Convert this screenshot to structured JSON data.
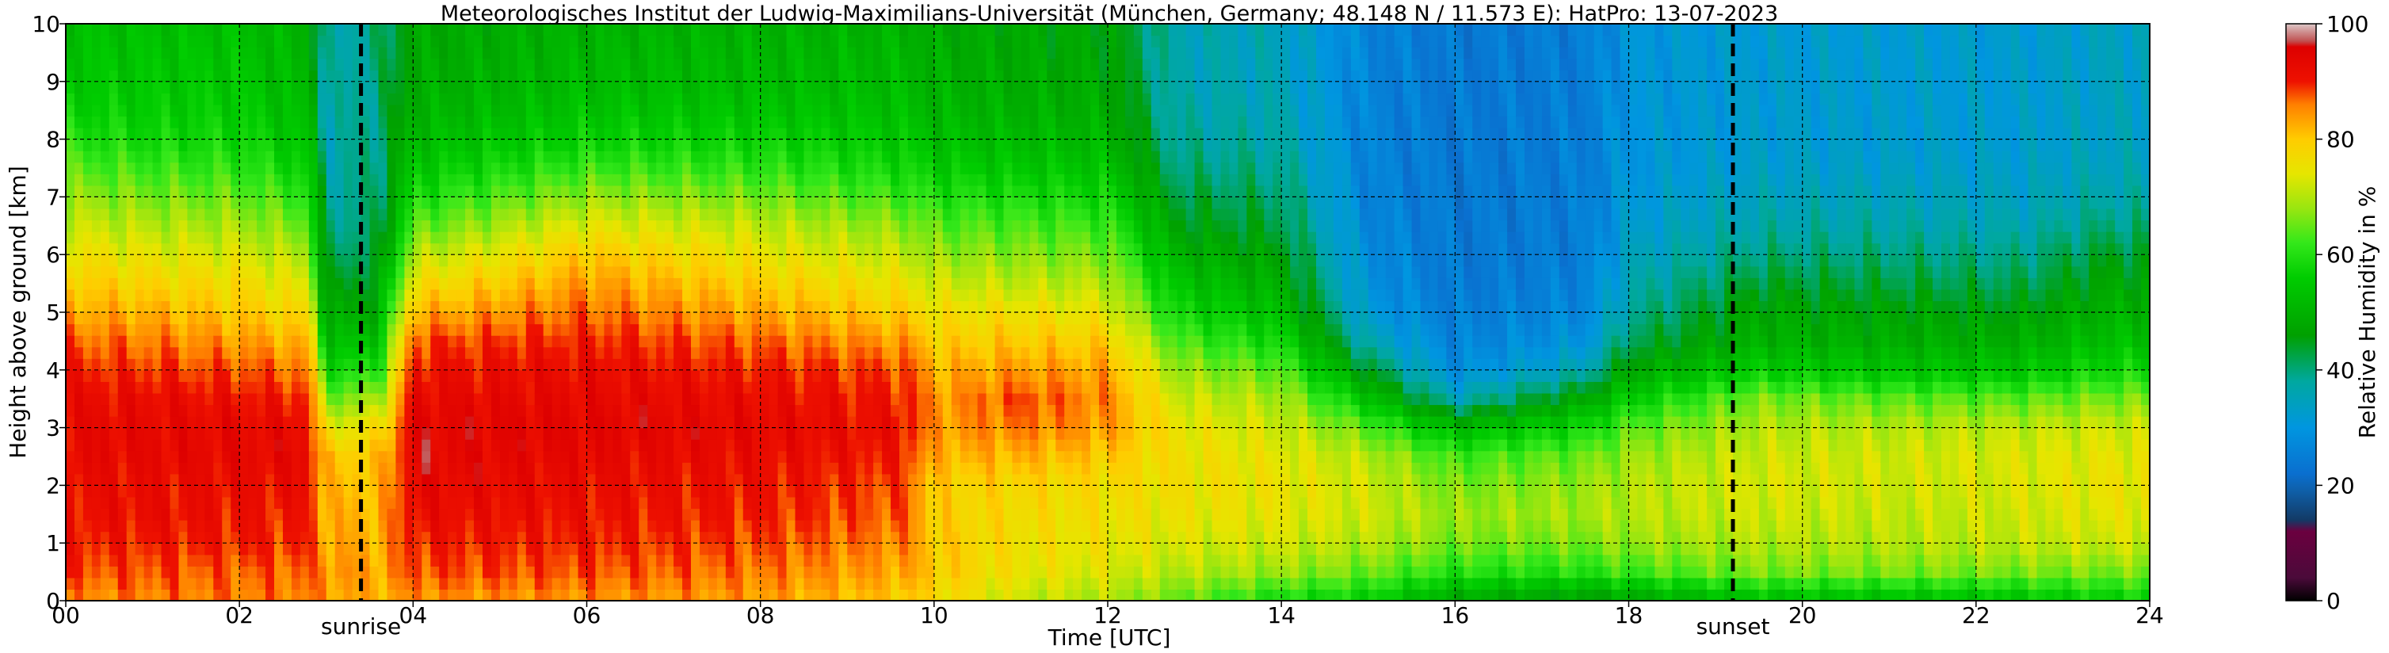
{
  "chart_data": {
    "type": "heatmap",
    "title": "Meteorologisches Institut der Ludwig-Maximilians-Universität (München, Germany; 48.148 N / 11.573 E):    HatPro: 13-07-2023",
    "xlabel": "Time [UTC]",
    "ylabel": "Height above ground [km]",
    "xlim": [
      0,
      24
    ],
    "ylim": [
      0,
      10
    ],
    "x_ticks": [
      "00",
      "02",
      "04",
      "06",
      "08",
      "10",
      "12",
      "14",
      "16",
      "18",
      "20",
      "22",
      "24"
    ],
    "y_ticks": [
      "0",
      "1",
      "2",
      "3",
      "4",
      "5",
      "6",
      "7",
      "8",
      "9",
      "10"
    ],
    "grid": true,
    "colorbar": {
      "label": "Relative Humidity in %",
      "range": [
        0,
        100
      ],
      "ticks": [
        "0",
        "20",
        "40",
        "60",
        "80",
        "100"
      ]
    },
    "annotations": [
      {
        "text": "sunrise",
        "x": 3.4
      },
      {
        "text": "sunset",
        "x": 19.2
      }
    ],
    "profile_heights_km": [
      0.1,
      0.5,
      1.0,
      1.5,
      2.0,
      2.5,
      3.0,
      3.5,
      4.0,
      4.5,
      5.0,
      5.5,
      6.0,
      6.5,
      7.0,
      7.5,
      8.0,
      8.5,
      9.0,
      9.5,
      10.0
    ],
    "profiles": [
      {
        "t": 0.0,
        "rh": [
          85,
          88,
          90,
          91,
          92,
          93,
          93,
          92,
          90,
          87,
          83,
          80,
          76,
          72,
          68,
          64,
          60,
          57,
          55,
          54,
          53
        ]
      },
      {
        "t": 1.0,
        "rh": [
          86,
          88,
          90,
          92,
          92,
          93,
          93,
          92,
          89,
          86,
          82,
          78,
          74,
          70,
          66,
          62,
          58,
          56,
          55,
          54,
          53
        ]
      },
      {
        "t": 2.0,
        "rh": [
          86,
          87,
          90,
          91,
          92,
          93,
          93,
          91,
          88,
          84,
          80,
          77,
          73,
          69,
          65,
          61,
          58,
          56,
          55,
          54,
          53
        ]
      },
      {
        "t": 2.8,
        "rh": [
          86,
          87,
          89,
          90,
          92,
          93,
          92,
          90,
          86,
          82,
          77,
          73,
          69,
          65,
          61,
          57,
          54,
          52,
          51,
          50,
          50
        ]
      },
      {
        "t": 3.0,
        "rh": [
          84,
          85,
          83,
          82,
          81,
          80,
          74,
          66,
          58,
          52,
          48,
          44,
          41,
          39,
          38,
          37,
          36,
          36,
          36,
          36,
          36
        ]
      },
      {
        "t": 3.6,
        "rh": [
          82,
          83,
          82,
          82,
          81,
          80,
          76,
          68,
          60,
          54,
          49,
          46,
          43,
          41,
          40,
          40,
          40,
          40,
          40,
          40,
          40
        ]
      },
      {
        "t": 4.0,
        "rh": [
          85,
          88,
          90,
          92,
          93,
          94,
          94,
          93,
          91,
          88,
          82,
          76,
          70,
          64,
          59,
          55,
          52,
          50,
          49,
          48,
          48
        ]
      },
      {
        "t": 6.0,
        "rh": [
          85,
          88,
          90,
          91,
          92,
          93,
          94,
          93,
          92,
          90,
          87,
          84,
          80,
          74,
          68,
          62,
          57,
          54,
          52,
          51,
          50
        ]
      },
      {
        "t": 8.0,
        "rh": [
          84,
          86,
          88,
          90,
          91,
          92,
          93,
          92,
          90,
          87,
          83,
          79,
          75,
          71,
          66,
          61,
          57,
          54,
          52,
          51,
          50
        ]
      },
      {
        "t": 9.7,
        "rh": [
          80,
          83,
          85,
          87,
          88,
          90,
          91,
          90,
          88,
          84,
          79,
          75,
          71,
          67,
          62,
          58,
          55,
          53,
          52,
          51,
          50
        ]
      },
      {
        "t": 10.0,
        "rh": [
          78,
          80,
          80,
          79,
          79,
          82,
          84,
          84,
          82,
          79,
          76,
          72,
          68,
          64,
          60,
          56,
          53,
          51,
          50,
          49,
          48
        ]
      },
      {
        "t": 11.0,
        "rh": [
          72,
          75,
          76,
          77,
          78,
          82,
          86,
          88,
          84,
          80,
          76,
          71,
          67,
          63,
          59,
          55,
          52,
          50,
          49,
          48,
          48
        ]
      },
      {
        "t": 12.0,
        "rh": [
          70,
          73,
          75,
          76,
          77,
          80,
          84,
          85,
          83,
          79,
          74,
          70,
          66,
          62,
          58,
          54,
          51,
          49,
          48,
          47,
          47
        ]
      },
      {
        "t": 12.8,
        "rh": [
          66,
          70,
          73,
          75,
          76,
          76,
          75,
          72,
          68,
          63,
          58,
          54,
          50,
          46,
          43,
          40,
          38,
          37,
          36,
          36,
          36
        ]
      },
      {
        "t": 14.0,
        "rh": [
          60,
          68,
          72,
          74,
          75,
          74,
          72,
          69,
          64,
          58,
          53,
          49,
          46,
          43,
          41,
          39,
          37,
          36,
          35,
          35,
          35
        ]
      },
      {
        "t": 15.0,
        "rh": [
          58,
          65,
          70,
          72,
          72,
          70,
          64,
          54,
          44,
          36,
          31,
          29,
          28,
          27,
          26,
          26,
          26,
          26,
          26,
          26,
          26
        ]
      },
      {
        "t": 16.0,
        "rh": [
          50,
          60,
          66,
          68,
          66,
          62,
          52,
          36,
          28,
          26,
          25,
          24,
          24,
          24,
          24,
          24,
          24,
          24,
          24,
          24,
          24
        ]
      },
      {
        "t": 17.5,
        "rh": [
          48,
          60,
          66,
          69,
          68,
          65,
          58,
          48,
          36,
          30,
          27,
          26,
          25,
          25,
          25,
          25,
          25,
          25,
          25,
          25,
          25
        ]
      },
      {
        "t": 18.0,
        "rh": [
          50,
          62,
          68,
          70,
          70,
          68,
          64,
          56,
          48,
          42,
          38,
          36,
          34,
          32,
          31,
          30,
          30,
          30,
          30,
          30,
          30
        ]
      },
      {
        "t": 19.5,
        "rh": [
          55,
          66,
          70,
          72,
          73,
          72,
          70,
          66,
          56,
          50,
          48,
          44,
          40,
          37,
          35,
          33,
          32,
          32,
          32,
          32,
          32
        ]
      },
      {
        "t": 21.0,
        "rh": [
          55,
          66,
          70,
          71,
          72,
          72,
          70,
          64,
          54,
          49,
          47,
          43,
          40,
          37,
          35,
          33,
          32,
          32,
          32,
          32,
          32
        ]
      },
      {
        "t": 22.5,
        "rh": [
          56,
          66,
          71,
          72,
          73,
          73,
          71,
          64,
          54,
          49,
          46,
          42,
          39,
          36,
          34,
          33,
          32,
          32,
          32,
          32,
          32
        ]
      },
      {
        "t": 23.5,
        "rh": [
          58,
          66,
          72,
          74,
          75,
          74,
          72,
          66,
          58,
          53,
          50,
          47,
          44,
          40,
          37,
          35,
          34,
          34,
          34,
          34,
          34
        ]
      },
      {
        "t": 24.0,
        "rh": [
          58,
          66,
          72,
          74,
          75,
          74,
          72,
          66,
          58,
          53,
          50,
          47,
          44,
          40,
          37,
          35,
          34,
          34,
          34,
          34,
          34
        ]
      }
    ],
    "colormap": [
      {
        "v": 0,
        "color": "#000000"
      },
      {
        "v": 4,
        "color": "#4b0a3a"
      },
      {
        "v": 12,
        "color": "#6b003f"
      },
      {
        "v": 14,
        "color": "#123a66"
      },
      {
        "v": 19,
        "color": "#0f5fa8"
      },
      {
        "v": 22,
        "color": "#0a6fcf"
      },
      {
        "v": 30,
        "color": "#0096e0"
      },
      {
        "v": 38,
        "color": "#00a8a0"
      },
      {
        "v": 46,
        "color": "#00a000"
      },
      {
        "v": 56,
        "color": "#00cc00"
      },
      {
        "v": 62,
        "color": "#33e81a"
      },
      {
        "v": 68,
        "color": "#99e610"
      },
      {
        "v": 74,
        "color": "#e6e600"
      },
      {
        "v": 80,
        "color": "#ffcc00"
      },
      {
        "v": 86,
        "color": "#ff8000"
      },
      {
        "v": 90,
        "color": "#ee1100"
      },
      {
        "v": 96,
        "color": "#dd0000"
      },
      {
        "v": 97,
        "color": "#c05050"
      },
      {
        "v": 100,
        "color": "#dcc8c8"
      }
    ]
  }
}
